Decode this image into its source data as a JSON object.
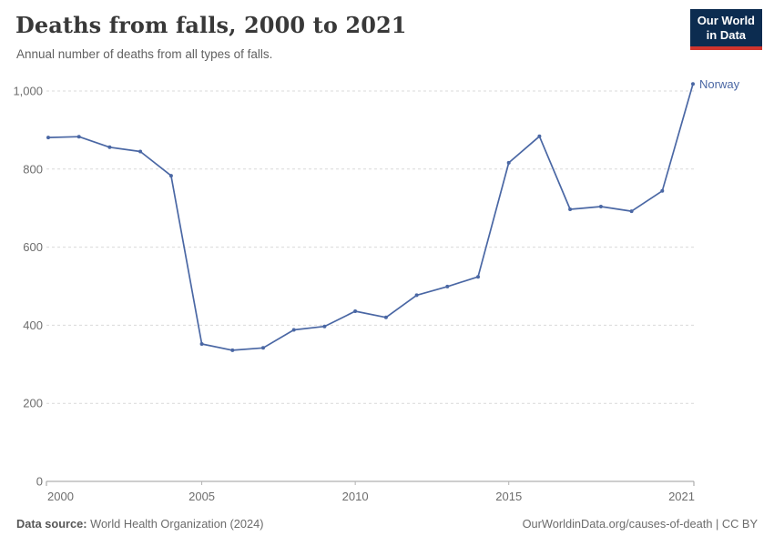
{
  "header": {
    "title": "Deaths from falls, 2000 to 2021",
    "subtitle": "Annual number of deaths from all types of falls.",
    "logo": {
      "line1": "Our World",
      "line2": "in Data",
      "bg_color": "#0c2c50",
      "accent_color": "#d0352e"
    }
  },
  "chart_data": {
    "type": "line",
    "title": "Deaths from falls, 2000 to 2021",
    "xlabel": "",
    "ylabel": "",
    "x": [
      2000,
      2001,
      2002,
      2003,
      2004,
      2005,
      2006,
      2007,
      2008,
      2009,
      2010,
      2011,
      2012,
      2013,
      2014,
      2015,
      2016,
      2017,
      2018,
      2019,
      2020,
      2021
    ],
    "series": [
      {
        "name": "Norway",
        "color": "#4a67a4",
        "values": [
          881,
          883,
          856,
          845,
          783,
          352,
          336,
          342,
          388,
          397,
          436,
          420,
          477,
          499,
          524,
          816,
          884,
          697,
          704,
          692,
          744,
          1018
        ]
      }
    ],
    "xlim": [
      2000,
      2021
    ],
    "ylim": [
      0,
      1000
    ],
    "xticks": [
      2000,
      2005,
      2010,
      2015,
      2021
    ],
    "yticks": [
      0,
      200,
      400,
      600,
      800,
      1000
    ],
    "grid": "horizontal-dashed",
    "legend": "end-of-line-label",
    "colors": {
      "gridline": "#d9d9d9",
      "axis": "#9e9e9e",
      "tick_label": "#6d6d6d"
    }
  },
  "footer": {
    "source_label": "Data source:",
    "source_value": "World Health Organization (2024)",
    "credit": "OurWorldinData.org/causes-of-death | CC BY"
  }
}
